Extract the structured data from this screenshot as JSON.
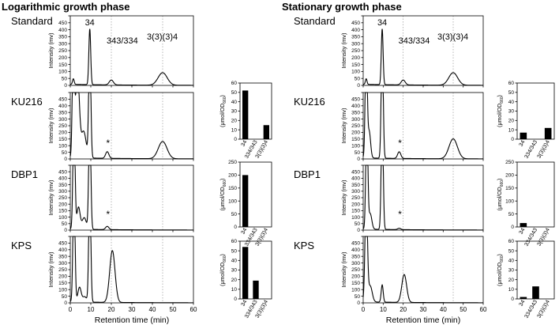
{
  "chart_data": {
    "type": "line",
    "sections": [
      {
        "key": "log",
        "title": "Logarithmic growth phase"
      },
      {
        "key": "stat",
        "title": "Stationary growth phase"
      }
    ],
    "samples": [
      "Standard",
      "KU216",
      "DBP1",
      "KPS"
    ],
    "peak_labels": [
      {
        "label": "34",
        "rt": 9.5
      },
      {
        "label": "343/334",
        "rt": 20
      },
      {
        "label": "3(3)(3)4",
        "rt": 45
      }
    ],
    "xlabel": "Retention time (min)",
    "xlim": [
      0,
      60
    ],
    "xticks": [
      0,
      10,
      20,
      30,
      40,
      50,
      60
    ],
    "ylabel": "Intensity (mv)",
    "ylim": [
      0,
      500
    ],
    "yticks": [
      0,
      50,
      100,
      150,
      200,
      250,
      300,
      350,
      400,
      450,
      500
    ],
    "ytick_labels": [
      "0",
      "50",
      "100",
      "150",
      "200",
      "250",
      "300",
      "350",
      "400",
      "450"
    ],
    "guide_rt": [
      20,
      45
    ],
    "chromatograms": {
      "log": {
        "Standard": {
          "base": 8,
          "peaks": [
            [
              1.5,
              40,
              0.4
            ],
            [
              9.5,
              400,
              0.45
            ],
            [
              20,
              35,
              1.0
            ],
            [
              45,
              90,
              2.2
            ]
          ],
          "star_rt": null
        },
        "KU216": {
          "base": 10,
          "peaks": [
            [
              1.5,
              900,
              0.5
            ],
            [
              3.5,
              650,
              0.9
            ],
            [
              6.5,
              200,
              1.2
            ],
            [
              9.5,
              900,
              0.5
            ],
            [
              18,
              50,
              0.8
            ],
            [
              45,
              130,
              2.1
            ]
          ],
          "star_rt": 18
        },
        "DBP1": {
          "base": 8,
          "peaks": [
            [
              1.8,
              900,
              0.5
            ],
            [
              4,
              170,
              0.8
            ],
            [
              6.8,
              90,
              1.0
            ],
            [
              9.5,
              900,
              0.5
            ],
            [
              18,
              25,
              0.8
            ]
          ],
          "star_rt": 18
        },
        "KPS": {
          "base": 8,
          "peaks": [
            [
              1.8,
              900,
              0.5
            ],
            [
              4.5,
              110,
              0.8
            ],
            [
              7,
              40,
              1.0
            ],
            [
              9.5,
              900,
              0.5
            ],
            [
              20.5,
              390,
              1.3
            ]
          ],
          "star_rt": null
        }
      },
      "stat": {
        "Standard": {
          "base": 8,
          "peaks": [
            [
              1.5,
              40,
              0.4
            ],
            [
              9.5,
              400,
              0.45
            ],
            [
              20,
              35,
              1.0
            ],
            [
              45,
              90,
              2.2
            ]
          ],
          "star_rt": null
        },
        "KU216": {
          "base": 8,
          "peaks": [
            [
              1.5,
              900,
              0.5
            ],
            [
              3,
              200,
              0.7
            ],
            [
              9.5,
              900,
              0.5
            ],
            [
              18,
              50,
              0.8
            ],
            [
              45,
              150,
              2.1
            ]
          ],
          "star_rt": 18
        },
        "DBP1": {
          "base": 8,
          "peaks": [
            [
              1.8,
              900,
              0.5
            ],
            [
              3.5,
              120,
              0.8
            ],
            [
              9.5,
              900,
              0.5
            ],
            [
              18,
              10,
              0.8
            ]
          ],
          "star_rt": 18
        },
        "KPS": {
          "base": 8,
          "peaks": [
            [
              1.5,
              800,
              0.6
            ],
            [
              3.5,
              120,
              1.0
            ],
            [
              9.5,
              130,
              0.5
            ],
            [
              20.5,
              210,
              1.2
            ]
          ],
          "star_rt": null
        }
      }
    },
    "bar_categories": [
      "34",
      "334/343",
      "3(3)(3)4"
    ],
    "bar_ylabel": "(μmol/OD660)",
    "bars": {
      "log": {
        "KU216": {
          "ymax": 60,
          "yticks": [
            0,
            10,
            20,
            30,
            40,
            50,
            60
          ],
          "values": [
            52,
            0,
            15
          ]
        },
        "DBP1": {
          "ymax": 250,
          "yticks": [
            0,
            50,
            100,
            150,
            200,
            250
          ],
          "values": [
            200,
            0,
            0
          ]
        },
        "KPS": {
          "ymax": 60,
          "yticks": [
            0,
            10,
            20,
            30,
            40,
            50,
            60
          ],
          "values": [
            54,
            19,
            0
          ]
        }
      },
      "stat": {
        "KU216": {
          "ymax": 60,
          "yticks": [
            0,
            10,
            20,
            30,
            40,
            50,
            60
          ],
          "values": [
            7,
            0,
            12
          ]
        },
        "DBP1": {
          "ymax": 250,
          "yticks": [
            0,
            50,
            100,
            150,
            200,
            250
          ],
          "values": [
            15,
            0,
            0
          ]
        },
        "KPS": {
          "ymax": 60,
          "yticks": [
            0,
            10,
            20,
            30,
            40,
            50,
            60
          ],
          "values": [
            2,
            13,
            0
          ]
        }
      }
    }
  }
}
